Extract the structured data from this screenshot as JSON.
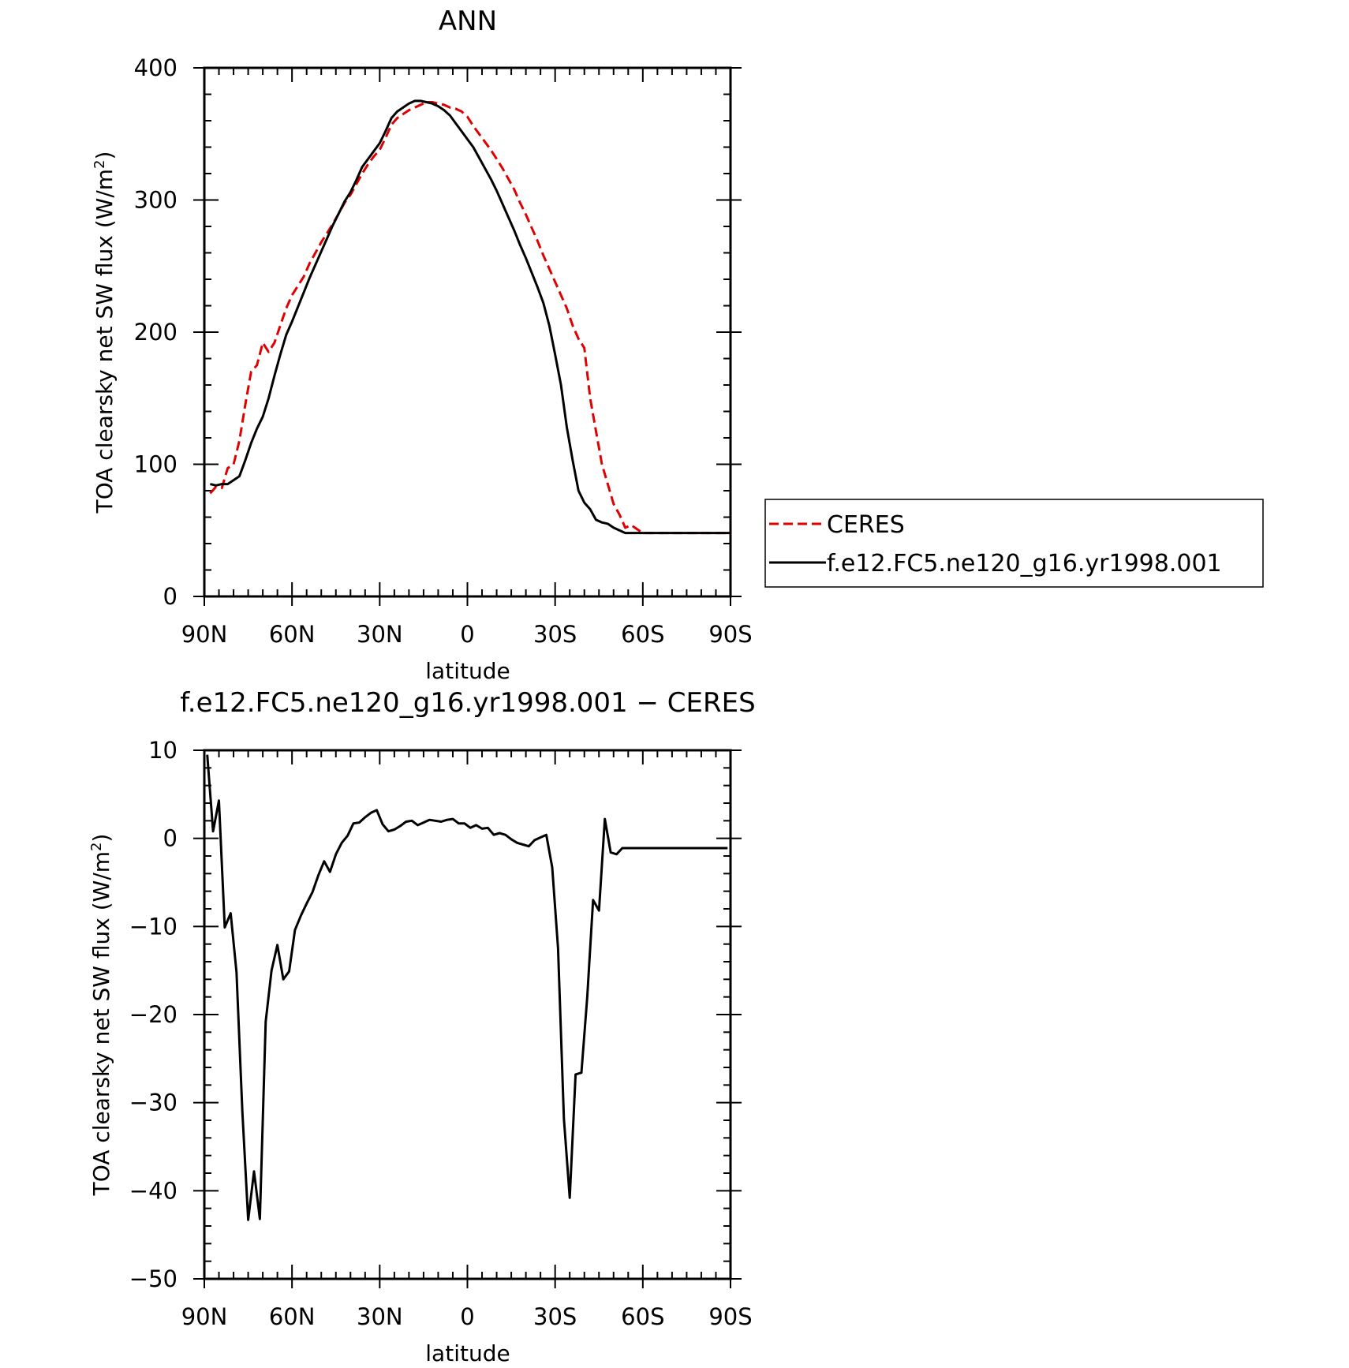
{
  "chart_data": [
    {
      "type": "line",
      "title": "ANN",
      "xlabel": "latitude",
      "ylabel": "TOA clearsky net SW flux (W/m",
      "ylabel_sup": "2",
      "ylabel_close": ")",
      "xlim": [
        90,
        -90
      ],
      "ylim": [
        0,
        400
      ],
      "xticks": [
        {
          "value": 90,
          "label": "90N"
        },
        {
          "value": 60,
          "label": "60N"
        },
        {
          "value": 30,
          "label": "30N"
        },
        {
          "value": 0,
          "label": "0"
        },
        {
          "value": -30,
          "label": "30S"
        },
        {
          "value": -60,
          "label": "60S"
        },
        {
          "value": -90,
          "label": "90S"
        }
      ],
      "yticks": [
        {
          "value": 0,
          "label": "0"
        },
        {
          "value": 100,
          "label": "100"
        },
        {
          "value": 200,
          "label": "200"
        },
        {
          "value": 300,
          "label": "300"
        },
        {
          "value": 400,
          "label": "400"
        }
      ],
      "legend": {
        "placement": "right"
      },
      "series": [
        {
          "name": "CERES",
          "color": "#e00000",
          "dash": "dashed",
          "x": [
            88,
            86,
            84,
            82,
            80,
            78,
            76,
            74,
            72,
            70,
            68,
            66,
            64,
            62,
            60,
            58,
            56,
            54,
            52,
            50,
            48,
            46,
            44,
            42,
            40,
            38,
            36,
            34,
            32,
            30,
            28,
            26,
            24,
            22,
            20,
            18,
            16,
            14,
            12,
            10,
            8,
            6,
            4,
            2,
            0,
            -2,
            -4,
            -6,
            -8,
            -10,
            -12,
            -14,
            -16,
            -18,
            -20,
            -22,
            -24,
            -26,
            -28,
            -30,
            -32,
            -34,
            -36,
            -38,
            -40,
            -42,
            -44,
            -46,
            -48,
            -50,
            -52,
            -54,
            -56,
            -58,
            -60,
            -62,
            -64,
            -66,
            -68,
            -70,
            -72,
            -74,
            -76,
            -78,
            -80,
            -82,
            -84,
            -86,
            -88,
            -90
          ],
          "values": [
            78,
            83,
            82,
            97,
            100,
            118,
            145,
            170,
            175,
            192,
            185,
            192,
            205,
            218,
            228,
            235,
            242,
            252,
            260,
            268,
            275,
            282,
            290,
            298,
            304,
            312,
            320,
            327,
            333,
            338,
            347,
            357,
            362,
            365,
            368,
            370,
            372,
            374,
            374,
            373,
            372,
            370,
            369,
            367,
            363,
            356,
            350,
            344,
            338,
            331,
            324,
            316,
            308,
            298,
            289,
            279,
            269,
            258,
            248,
            238,
            228,
            218,
            205,
            195,
            188,
            150,
            125,
            100,
            85,
            70,
            62,
            52,
            54,
            51,
            48,
            48,
            48,
            48,
            48,
            48,
            48,
            48,
            48,
            48,
            48,
            48,
            48,
            48,
            48,
            48
          ]
        },
        {
          "name": "f.e12.FC5.ne120_g16.yr1998.001",
          "color": "#000000",
          "dash": "solid",
          "x": [
            88,
            86,
            84,
            82,
            80,
            78,
            76,
            74,
            72,
            70,
            68,
            66,
            64,
            62,
            60,
            58,
            56,
            54,
            52,
            50,
            48,
            46,
            44,
            42,
            40,
            38,
            36,
            34,
            32,
            30,
            28,
            26,
            24,
            22,
            20,
            18,
            16,
            14,
            12,
            10,
            8,
            6,
            4,
            2,
            0,
            -2,
            -4,
            -6,
            -8,
            -10,
            -12,
            -14,
            -16,
            -18,
            -20,
            -22,
            -24,
            -26,
            -28,
            -30,
            -32,
            -34,
            -36,
            -38,
            -40,
            -42,
            -44,
            -46,
            -48,
            -50,
            -52,
            -54,
            -56,
            -58,
            -60,
            -62,
            -64,
            -66,
            -68,
            -70,
            -72,
            -74,
            -76,
            -78,
            -80,
            -82,
            -84,
            -86,
            -88,
            -90
          ],
          "values": [
            85,
            84,
            85,
            85,
            88,
            91,
            103,
            116,
            127,
            136,
            150,
            167,
            183,
            198,
            208,
            219,
            230,
            241,
            251,
            261,
            271,
            281,
            290,
            299,
            306,
            315,
            325,
            331,
            337,
            343,
            352,
            362,
            367,
            370,
            373,
            375,
            375,
            374,
            373,
            371,
            368,
            364,
            358,
            352,
            346,
            340,
            332,
            324,
            316,
            307,
            297,
            287,
            277,
            266,
            256,
            245,
            234,
            222,
            205,
            183,
            160,
            128,
            103,
            80,
            71,
            66,
            58,
            56,
            55,
            52,
            50,
            48,
            48,
            48,
            48,
            48,
            48,
            48,
            48,
            48,
            48,
            48,
            48,
            48,
            48,
            48,
            48,
            48,
            48,
            48
          ]
        }
      ]
    },
    {
      "type": "line",
      "title": "f.e12.FC5.ne120_g16.yr1998.001 − CERES",
      "xlabel": "latitude",
      "ylabel": "TOA clearsky net SW flux (W/m",
      "ylabel_sup": "2",
      "ylabel_close": ")",
      "xlim": [
        90,
        -90
      ],
      "ylim": [
        -50,
        10
      ],
      "xticks": [
        {
          "value": 90,
          "label": "90N"
        },
        {
          "value": 60,
          "label": "60N"
        },
        {
          "value": 30,
          "label": "30N"
        },
        {
          "value": 0,
          "label": "0"
        },
        {
          "value": -30,
          "label": "30S"
        },
        {
          "value": -60,
          "label": "60S"
        },
        {
          "value": -90,
          "label": "90S"
        }
      ],
      "yticks": [
        {
          "value": -50,
          "label": "−50"
        },
        {
          "value": -40,
          "label": "−40"
        },
        {
          "value": -30,
          "label": "−30"
        },
        {
          "value": -20,
          "label": "−20"
        },
        {
          "value": -10,
          "label": "−10"
        },
        {
          "value": 0,
          "label": "0"
        },
        {
          "value": 10,
          "label": "10"
        }
      ],
      "series": [
        {
          "name": "",
          "color": "#000000",
          "dash": "solid",
          "x": [
            89,
            87,
            85,
            83,
            81,
            79,
            77,
            75,
            73,
            71,
            69,
            67,
            65,
            63,
            61,
            59,
            57,
            55,
            53,
            51,
            49,
            47,
            45,
            43,
            41,
            39,
            37,
            35,
            33,
            31,
            29,
            27,
            25,
            23,
            21,
            19,
            17,
            15,
            13,
            11,
            9,
            7,
            5,
            3,
            1,
            -1,
            -3,
            -5,
            -7,
            -9,
            -11,
            -13,
            -15,
            -17,
            -19,
            -21,
            -23,
            -25,
            -27,
            -29,
            -31,
            -33,
            -35,
            -37,
            -39,
            -41,
            -43,
            -45,
            -47,
            -49,
            -51,
            -53,
            -55,
            -57,
            -59,
            -61,
            -63,
            -65,
            -67,
            -69,
            -71,
            -73,
            -75,
            -77,
            -79,
            -81,
            -83,
            -85,
            -87,
            -89
          ],
          "values": [
            9.5,
            0.8,
            4.3,
            -10.1,
            -8.5,
            -15.2,
            -31.0,
            -43.3,
            -37.8,
            -43.2,
            -20.8,
            -15.0,
            -12.1,
            -16.0,
            -15.1,
            -10.4,
            -8.8,
            -7.4,
            -6.1,
            -4.2,
            -2.6,
            -3.8,
            -1.8,
            -0.5,
            0.3,
            1.7,
            1.8,
            2.4,
            2.9,
            3.2,
            1.6,
            0.8,
            1.0,
            1.4,
            1.9,
            2.0,
            1.5,
            1.8,
            2.1,
            2.0,
            1.9,
            2.1,
            2.2,
            1.7,
            1.7,
            1.2,
            1.5,
            1.1,
            1.2,
            0.4,
            0.6,
            0.4,
            -0.1,
            -0.5,
            -0.7,
            -0.9,
            -0.2,
            0.1,
            0.4,
            -3.3,
            -12.5,
            -31.8,
            -40.8,
            -26.8,
            -26.6,
            -18.0,
            -7.0,
            -8.2,
            2.2,
            -1.6,
            -1.8,
            -1.1,
            -1.1,
            -1.1,
            -1.1,
            -1.1,
            -1.1,
            -1.1,
            -1.1,
            -1.1,
            -1.1,
            -1.1,
            -1.1,
            -1.1,
            -1.1,
            -1.1,
            -1.1,
            -1.1,
            -1.1,
            -1.1
          ]
        }
      ]
    }
  ]
}
